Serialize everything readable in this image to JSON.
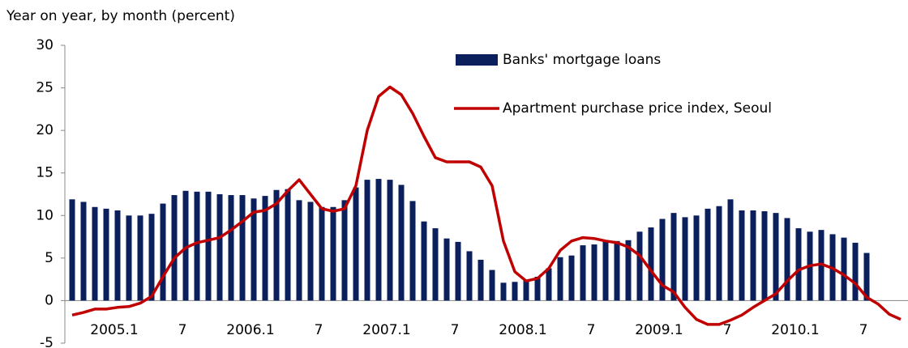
{
  "chart_data": {
    "type": "bar_line",
    "title": "Year on year, by month (percent)",
    "categories": [
      null,
      null,
      null,
      "2005.1",
      null,
      null,
      null,
      null,
      null,
      "7",
      null,
      null,
      null,
      null,
      null,
      "2006.1",
      null,
      null,
      null,
      null,
      null,
      "7",
      null,
      null,
      null,
      null,
      null,
      "2007.1",
      null,
      null,
      null,
      null,
      null,
      "7",
      null,
      null,
      null,
      null,
      null,
      "2008.1",
      null,
      null,
      null,
      null,
      null,
      "7",
      null,
      null,
      null,
      null,
      null,
      "2009.1",
      null,
      null,
      null,
      null,
      null,
      "7",
      null,
      null,
      null,
      null,
      null,
      "2010.1",
      null,
      null,
      null,
      null,
      null,
      "7",
      null,
      null,
      null,
      null
    ],
    "series": [
      {
        "name": "Banks' mortgage loans",
        "type": "bar",
        "color": "#0b1f5c",
        "values": [
          11.9,
          11.6,
          11.0,
          10.8,
          10.6,
          10.0,
          10.0,
          10.2,
          11.4,
          12.4,
          12.9,
          12.8,
          12.8,
          12.5,
          12.4,
          12.4,
          12.0,
          12.3,
          13.0,
          13.1,
          11.8,
          11.6,
          11.0,
          11.0,
          11.8,
          13.3,
          14.2,
          14.3,
          14.2,
          13.6,
          11.7,
          9.3,
          8.5,
          7.3,
          6.9,
          5.8,
          4.8,
          3.6,
          2.1,
          2.2,
          2.4,
          2.8,
          3.8,
          5.1,
          5.3,
          6.5,
          6.6,
          7.0,
          7.0,
          7.1,
          8.1,
          8.6,
          9.6,
          10.3,
          9.8,
          10.0,
          10.8,
          11.1,
          11.9,
          10.6,
          10.6,
          10.5,
          10.3,
          9.7,
          8.5,
          8.1,
          8.3,
          7.8,
          7.4,
          6.8,
          5.6,
          null,
          null,
          null
        ]
      },
      {
        "name": "Apartment purchase price index, Seoul",
        "type": "line",
        "color": "#c00000",
        "values": [
          -1.7,
          -1.4,
          -1.0,
          -1.0,
          -0.8,
          -0.7,
          -0.3,
          0.5,
          2.8,
          5.0,
          6.2,
          6.8,
          7.1,
          7.4,
          8.3,
          9.3,
          10.4,
          10.6,
          11.4,
          12.9,
          14.2,
          12.5,
          10.8,
          10.5,
          10.8,
          13.5,
          20.0,
          24.0,
          25.1,
          24.2,
          22.0,
          19.3,
          16.8,
          16.3,
          16.3,
          16.3,
          15.7,
          13.5,
          7.0,
          3.4,
          2.3,
          2.6,
          3.8,
          5.9,
          7.0,
          7.4,
          7.3,
          7.0,
          6.8,
          6.3,
          5.3,
          3.5,
          1.8,
          1.0,
          -0.8,
          -2.2,
          -2.8,
          -2.8,
          -2.3,
          -1.7,
          -0.8,
          0.0,
          0.8,
          2.3,
          3.6,
          4.1,
          4.3,
          3.8,
          3.0,
          2.0,
          0.4,
          -0.4,
          -1.6,
          -2.2
        ]
      }
    ],
    "ylim": [
      -5,
      30
    ],
    "yticks": [
      -5,
      0,
      5,
      10,
      15,
      20,
      25,
      30
    ],
    "grid": false
  }
}
